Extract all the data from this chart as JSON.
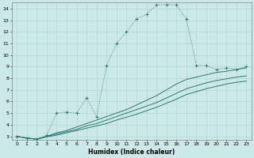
{
  "xlabel": "Humidex (Indice chaleur)",
  "bg_color": "#cce8e8",
  "grid_color": "#b0d8d8",
  "line_color": "#2d7a6e",
  "xlim": [
    -0.5,
    23.5
  ],
  "ylim": [
    2.7,
    14.5
  ],
  "yticks": [
    3,
    4,
    5,
    6,
    7,
    8,
    9,
    10,
    11,
    12,
    13,
    14
  ],
  "xticks": [
    0,
    1,
    2,
    3,
    4,
    5,
    6,
    7,
    8,
    9,
    10,
    11,
    12,
    13,
    14,
    15,
    16,
    17,
    18,
    19,
    20,
    21,
    22,
    23
  ],
  "curve1_x": [
    0,
    1,
    2,
    3,
    4,
    5,
    6,
    7,
    8,
    9,
    10,
    11,
    12,
    13,
    14,
    15,
    16,
    17,
    18,
    19,
    20,
    21,
    22,
    23
  ],
  "curve1_y": [
    3.0,
    2.85,
    2.75,
    3.1,
    5.0,
    5.1,
    5.0,
    6.3,
    4.7,
    9.1,
    11.0,
    12.0,
    13.1,
    13.5,
    14.3,
    14.35,
    14.3,
    13.1,
    9.1,
    9.1,
    8.75,
    8.9,
    8.75,
    9.0
  ],
  "curve2_x": [
    0,
    1,
    2,
    3,
    4,
    5,
    6,
    7,
    8,
    9,
    10,
    11,
    12,
    13,
    14,
    15,
    16,
    17,
    18,
    19,
    20,
    21,
    22,
    23
  ],
  "curve2_y": [
    3.0,
    2.85,
    2.75,
    3.0,
    3.3,
    3.5,
    3.8,
    4.1,
    4.4,
    4.7,
    5.0,
    5.3,
    5.7,
    6.1,
    6.5,
    7.0,
    7.5,
    7.9,
    8.1,
    8.3,
    8.5,
    8.6,
    8.75,
    8.9
  ],
  "curve3_x": [
    0,
    1,
    2,
    3,
    4,
    5,
    6,
    7,
    8,
    9,
    10,
    11,
    12,
    13,
    14,
    15,
    16,
    17,
    18,
    19,
    20,
    21,
    22,
    23
  ],
  "curve3_y": [
    3.0,
    2.85,
    2.75,
    3.0,
    3.2,
    3.4,
    3.6,
    3.9,
    4.1,
    4.4,
    4.7,
    5.0,
    5.3,
    5.6,
    5.9,
    6.3,
    6.7,
    7.1,
    7.35,
    7.6,
    7.8,
    7.95,
    8.1,
    8.2
  ],
  "curve4_x": [
    0,
    1,
    2,
    3,
    4,
    5,
    6,
    7,
    8,
    9,
    10,
    11,
    12,
    13,
    14,
    15,
    16,
    17,
    18,
    19,
    20,
    21,
    22,
    23
  ],
  "curve4_y": [
    3.0,
    2.85,
    2.75,
    2.95,
    3.1,
    3.3,
    3.5,
    3.7,
    3.9,
    4.1,
    4.4,
    4.65,
    4.9,
    5.2,
    5.5,
    5.85,
    6.2,
    6.6,
    6.85,
    7.1,
    7.3,
    7.5,
    7.65,
    7.75
  ]
}
